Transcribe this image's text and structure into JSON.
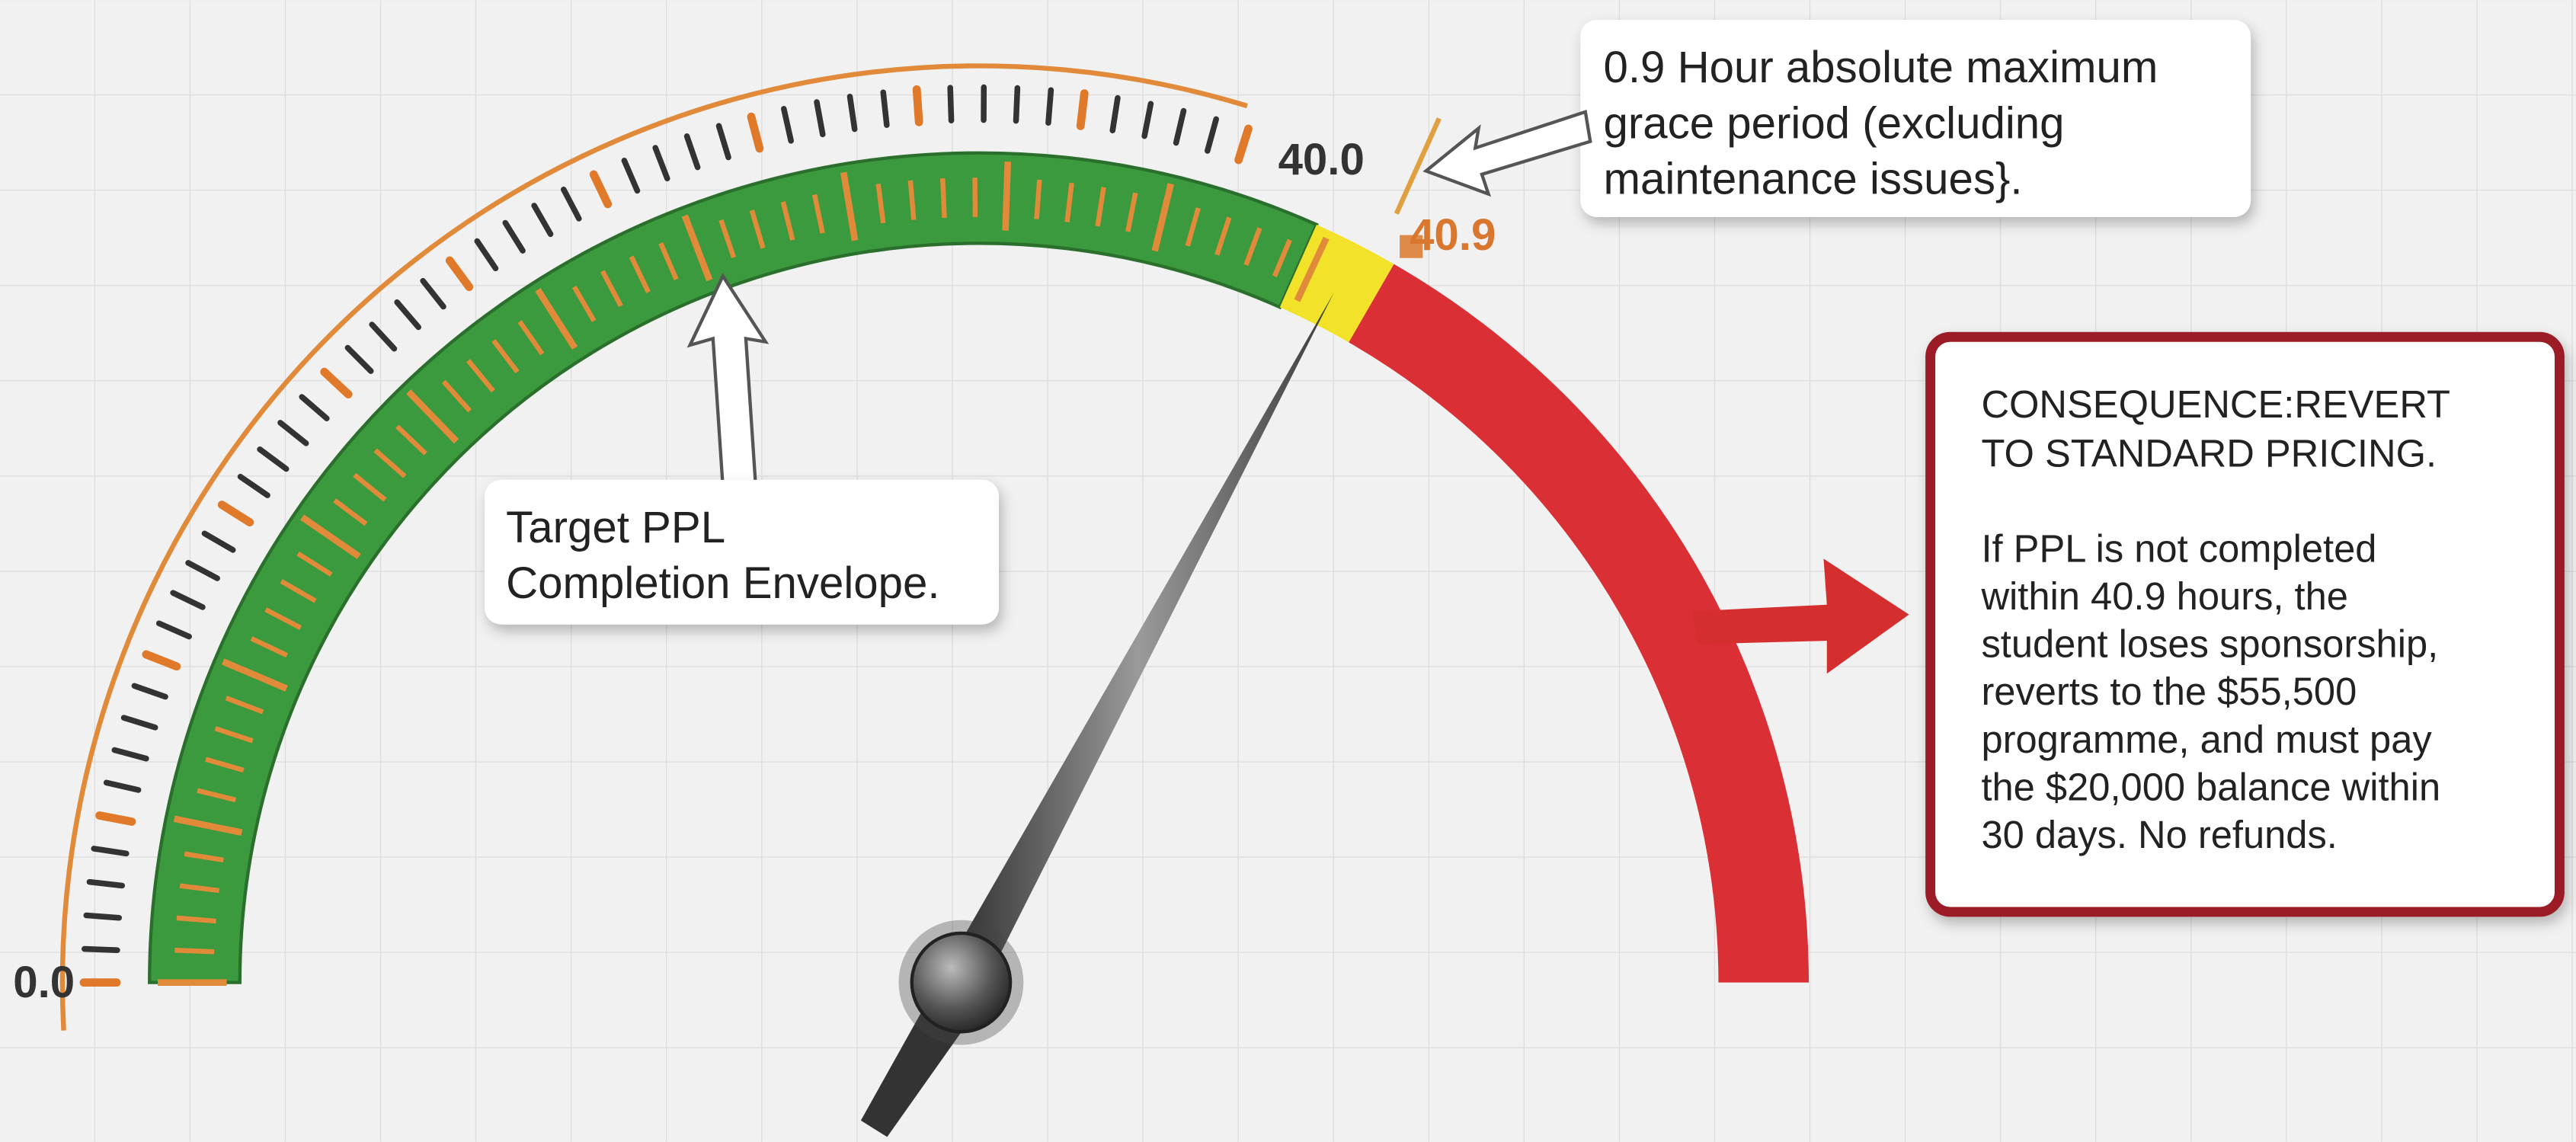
{
  "gauge": {
    "start_label": "0.0",
    "target_label": "40.0",
    "limit_label": "40.9"
  },
  "grace_callout": {
    "lines": [
      "0.9 Hour absolute maximum",
      "grace period (excluding",
      "maintenance issues}."
    ]
  },
  "target_callout": {
    "lines": [
      "Target PPL",
      "Completion Envelope."
    ]
  },
  "consequence": {
    "heading": [
      "CONSEQUENCE:REVERT",
      "TO STANDARD PRICING."
    ],
    "body": [
      "If PPL is not completed",
      "within 40.9 hours, the",
      "student loses sponsorship,",
      "reverts to the $55,500",
      "programme, and must pay",
      "the $20,000 balance within",
      "30 days. No refunds."
    ]
  }
}
